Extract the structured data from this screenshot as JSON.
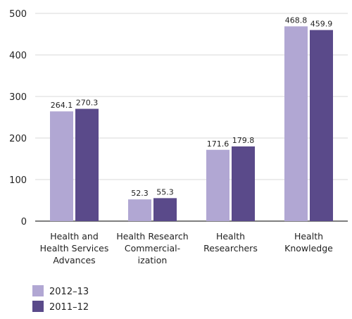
{
  "chart_data": {
    "type": "bar",
    "categories": [
      [
        "Health and",
        "Health Services",
        "Advances"
      ],
      [
        "Health Research",
        "Commercial-",
        "ization"
      ],
      [
        "Health",
        "Researchers"
      ],
      [
        "Health",
        "Knowledge"
      ]
    ],
    "series": [
      {
        "name": "2012–13",
        "values": [
          264.1,
          52.3,
          171.6,
          468.8
        ],
        "value_labels": [
          "264.1",
          "52.3",
          "171.6",
          "468.8"
        ],
        "color": "#b1a7d3"
      },
      {
        "name": "2011–12",
        "values": [
          270.3,
          55.3,
          179.8,
          459.9
        ],
        "value_labels": [
          "270.3",
          "55.3",
          "179.8",
          "459.9"
        ],
        "color": "#5a4a8a"
      }
    ],
    "ylim": [
      0,
      500
    ],
    "yticks": [
      0,
      100,
      200,
      300,
      400,
      500
    ],
    "grid": true,
    "legend_position": "bottom-left"
  }
}
